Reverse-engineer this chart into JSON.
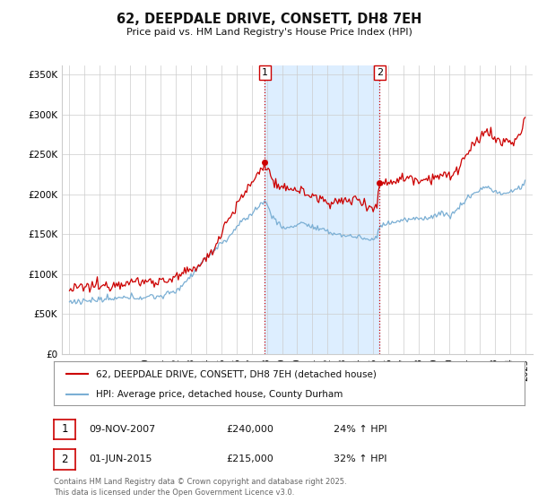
{
  "title": "62, DEEPDALE DRIVE, CONSETT, DH8 7EH",
  "subtitle": "Price paid vs. HM Land Registry's House Price Index (HPI)",
  "ylabel_ticks": [
    "£0",
    "£50K",
    "£100K",
    "£150K",
    "£200K",
    "£250K",
    "£300K",
    "£350K"
  ],
  "ytick_values": [
    0,
    50000,
    100000,
    150000,
    200000,
    250000,
    300000,
    350000
  ],
  "ylim": [
    0,
    362000
  ],
  "xlim_start": 1994.5,
  "xlim_end": 2025.5,
  "marker1_x": 2007.86,
  "marker1_y": 240000,
  "marker1_label": "1",
  "marker2_x": 2015.42,
  "marker2_y": 215000,
  "marker2_label": "2",
  "shade_start": 2007.86,
  "shade_end": 2015.42,
  "red_color": "#cc0000",
  "blue_color": "#7bafd4",
  "shade_color": "#ddeeff",
  "grid_color": "#cccccc",
  "background_color": "#ffffff",
  "legend_line1": "62, DEEPDALE DRIVE, CONSETT, DH8 7EH (detached house)",
  "legend_line2": "HPI: Average price, detached house, County Durham",
  "table_row1": [
    "1",
    "09-NOV-2007",
    "£240,000",
    "24% ↑ HPI"
  ],
  "table_row2": [
    "2",
    "01-JUN-2015",
    "£215,000",
    "32% ↑ HPI"
  ],
  "footnote": "Contains HM Land Registry data © Crown copyright and database right 2025.\nThis data is licensed under the Open Government Licence v3.0.",
  "hpi_red_data": [
    [
      1995.0,
      80000
    ],
    [
      1995.25,
      81000
    ],
    [
      1995.5,
      82000
    ],
    [
      1995.75,
      83500
    ],
    [
      1996.0,
      83000
    ],
    [
      1996.25,
      84000
    ],
    [
      1996.5,
      85000
    ],
    [
      1996.75,
      86000
    ],
    [
      1997.0,
      84000
    ],
    [
      1997.25,
      85000
    ],
    [
      1997.5,
      86000
    ],
    [
      1997.75,
      87500
    ],
    [
      1998.0,
      88000
    ],
    [
      1998.25,
      89000
    ],
    [
      1998.5,
      90000
    ],
    [
      1998.75,
      89500
    ],
    [
      1999.0,
      89000
    ],
    [
      1999.25,
      90000
    ],
    [
      1999.5,
      91000
    ],
    [
      1999.75,
      90500
    ],
    [
      2000.0,
      90000
    ],
    [
      2000.25,
      91000
    ],
    [
      2000.5,
      92000
    ],
    [
      2000.75,
      91500
    ],
    [
      2001.0,
      91000
    ],
    [
      2001.25,
      92000
    ],
    [
      2001.5,
      93000
    ],
    [
      2001.75,
      94000
    ],
    [
      2002.0,
      95000
    ],
    [
      2002.25,
      97000
    ],
    [
      2002.5,
      100000
    ],
    [
      2002.75,
      102000
    ],
    [
      2003.0,
      105000
    ],
    [
      2003.25,
      108000
    ],
    [
      2003.5,
      112000
    ],
    [
      2003.75,
      115000
    ],
    [
      2004.0,
      118000
    ],
    [
      2004.25,
      125000
    ],
    [
      2004.5,
      132000
    ],
    [
      2004.75,
      140000
    ],
    [
      2005.0,
      155000
    ],
    [
      2005.25,
      163000
    ],
    [
      2005.5,
      170000
    ],
    [
      2005.75,
      178000
    ],
    [
      2006.0,
      185000
    ],
    [
      2006.25,
      193000
    ],
    [
      2006.5,
      200000
    ],
    [
      2006.75,
      208000
    ],
    [
      2007.0,
      215000
    ],
    [
      2007.25,
      221000
    ],
    [
      2007.5,
      228000
    ],
    [
      2007.75,
      236000
    ],
    [
      2007.86,
      240000
    ],
    [
      2008.0,
      232000
    ],
    [
      2008.25,
      224000
    ],
    [
      2008.5,
      215000
    ],
    [
      2008.75,
      208000
    ],
    [
      2009.0,
      204000
    ],
    [
      2009.25,
      207000
    ],
    [
      2009.5,
      210000
    ],
    [
      2009.75,
      208000
    ],
    [
      2010.0,
      206000
    ],
    [
      2010.25,
      204000
    ],
    [
      2010.5,
      202000
    ],
    [
      2010.75,
      200000
    ],
    [
      2011.0,
      198000
    ],
    [
      2011.25,
      196000
    ],
    [
      2011.5,
      194000
    ],
    [
      2011.75,
      193000
    ],
    [
      2012.0,
      192000
    ],
    [
      2012.25,
      191000
    ],
    [
      2012.5,
      190000
    ],
    [
      2012.75,
      190000
    ],
    [
      2013.0,
      191000
    ],
    [
      2013.25,
      192000
    ],
    [
      2013.5,
      193000
    ],
    [
      2013.75,
      194000
    ],
    [
      2014.0,
      194000
    ],
    [
      2014.25,
      192000
    ],
    [
      2014.5,
      189000
    ],
    [
      2014.75,
      185000
    ],
    [
      2015.0,
      183000
    ],
    [
      2015.25,
      185000
    ],
    [
      2015.42,
      215000
    ],
    [
      2015.5,
      212000
    ],
    [
      2015.75,
      214000
    ],
    [
      2016.0,
      216000
    ],
    [
      2016.25,
      217000
    ],
    [
      2016.5,
      218000
    ],
    [
      2016.75,
      219000
    ],
    [
      2017.0,
      220000
    ],
    [
      2017.25,
      221000
    ],
    [
      2017.5,
      222000
    ],
    [
      2017.75,
      220000
    ],
    [
      2018.0,
      218000
    ],
    [
      2018.25,
      219000
    ],
    [
      2018.5,
      220000
    ],
    [
      2018.75,
      221000
    ],
    [
      2019.0,
      222000
    ],
    [
      2019.25,
      223000
    ],
    [
      2019.5,
      224000
    ],
    [
      2019.75,
      223000
    ],
    [
      2020.0,
      222000
    ],
    [
      2020.25,
      225000
    ],
    [
      2020.5,
      230000
    ],
    [
      2020.75,
      238000
    ],
    [
      2021.0,
      245000
    ],
    [
      2021.25,
      252000
    ],
    [
      2021.5,
      258000
    ],
    [
      2021.75,
      263000
    ],
    [
      2022.0,
      268000
    ],
    [
      2022.25,
      278000
    ],
    [
      2022.5,
      282000
    ],
    [
      2022.75,
      275000
    ],
    [
      2023.0,
      270000
    ],
    [
      2023.25,
      267000
    ],
    [
      2023.5,
      264000
    ],
    [
      2023.75,
      266000
    ],
    [
      2024.0,
      268000
    ],
    [
      2024.25,
      265000
    ],
    [
      2024.5,
      268000
    ],
    [
      2024.75,
      280000
    ],
    [
      2025.0,
      295000
    ]
  ],
  "hpi_blue_data": [
    [
      1995.0,
      65000
    ],
    [
      1995.25,
      65500
    ],
    [
      1995.5,
      66000
    ],
    [
      1995.75,
      66500
    ],
    [
      1996.0,
      66500
    ],
    [
      1996.25,
      67000
    ],
    [
      1996.5,
      67000
    ],
    [
      1996.75,
      67500
    ],
    [
      1997.0,
      67500
    ],
    [
      1997.25,
      68000
    ],
    [
      1997.5,
      68000
    ],
    [
      1997.75,
      68500
    ],
    [
      1998.0,
      69000
    ],
    [
      1998.25,
      69500
    ],
    [
      1998.5,
      70000
    ],
    [
      1998.75,
      70000
    ],
    [
      1999.0,
      70500
    ],
    [
      1999.25,
      71000
    ],
    [
      1999.5,
      71000
    ],
    [
      1999.75,
      71000
    ],
    [
      2000.0,
      71500
    ],
    [
      2000.25,
      72000
    ],
    [
      2000.5,
      72000
    ],
    [
      2000.75,
      72000
    ],
    [
      2001.0,
      72500
    ],
    [
      2001.25,
      73500
    ],
    [
      2001.5,
      75000
    ],
    [
      2001.75,
      77000
    ],
    [
      2002.0,
      79000
    ],
    [
      2002.25,
      83000
    ],
    [
      2002.5,
      88000
    ],
    [
      2002.75,
      93000
    ],
    [
      2003.0,
      98000
    ],
    [
      2003.25,
      104000
    ],
    [
      2003.5,
      110000
    ],
    [
      2003.75,
      116000
    ],
    [
      2004.0,
      120000
    ],
    [
      2004.25,
      125000
    ],
    [
      2004.5,
      130000
    ],
    [
      2004.75,
      135000
    ],
    [
      2005.0,
      138000
    ],
    [
      2005.25,
      142000
    ],
    [
      2005.5,
      147000
    ],
    [
      2005.75,
      153000
    ],
    [
      2006.0,
      158000
    ],
    [
      2006.25,
      163000
    ],
    [
      2006.5,
      168000
    ],
    [
      2006.75,
      172000
    ],
    [
      2007.0,
      176000
    ],
    [
      2007.25,
      181000
    ],
    [
      2007.5,
      186000
    ],
    [
      2007.75,
      190000
    ],
    [
      2007.86,
      192000
    ],
    [
      2008.0,
      187000
    ],
    [
      2008.25,
      178000
    ],
    [
      2008.5,
      169000
    ],
    [
      2008.75,
      163000
    ],
    [
      2009.0,
      159000
    ],
    [
      2009.25,
      158000
    ],
    [
      2009.5,
      158000
    ],
    [
      2009.75,
      160000
    ],
    [
      2010.0,
      163000
    ],
    [
      2010.25,
      165000
    ],
    [
      2010.5,
      163000
    ],
    [
      2010.75,
      161000
    ],
    [
      2011.0,
      159000
    ],
    [
      2011.25,
      157000
    ],
    [
      2011.5,
      156000
    ],
    [
      2011.75,
      154000
    ],
    [
      2012.0,
      153000
    ],
    [
      2012.25,
      152000
    ],
    [
      2012.5,
      151000
    ],
    [
      2012.75,
      150000
    ],
    [
      2013.0,
      149000
    ],
    [
      2013.25,
      148000
    ],
    [
      2013.5,
      148000
    ],
    [
      2013.75,
      147000
    ],
    [
      2014.0,
      147000
    ],
    [
      2014.25,
      146000
    ],
    [
      2014.5,
      144000
    ],
    [
      2014.75,
      143000
    ],
    [
      2015.0,
      144000
    ],
    [
      2015.25,
      147000
    ],
    [
      2015.42,
      158000
    ],
    [
      2015.5,
      162000
    ],
    [
      2015.75,
      163000
    ],
    [
      2016.0,
      164000
    ],
    [
      2016.25,
      165000
    ],
    [
      2016.5,
      166000
    ],
    [
      2016.75,
      167000
    ],
    [
      2017.0,
      167000
    ],
    [
      2017.25,
      168000
    ],
    [
      2017.5,
      169000
    ],
    [
      2017.75,
      169000
    ],
    [
      2018.0,
      169000
    ],
    [
      2018.25,
      170000
    ],
    [
      2018.5,
      171000
    ],
    [
      2018.75,
      172000
    ],
    [
      2019.0,
      173000
    ],
    [
      2019.25,
      175000
    ],
    [
      2019.5,
      176000
    ],
    [
      2019.75,
      175000
    ],
    [
      2020.0,
      174000
    ],
    [
      2020.25,
      176000
    ],
    [
      2020.5,
      180000
    ],
    [
      2020.75,
      186000
    ],
    [
      2021.0,
      191000
    ],
    [
      2021.25,
      196000
    ],
    [
      2021.5,
      200000
    ],
    [
      2021.75,
      203000
    ],
    [
      2022.0,
      205000
    ],
    [
      2022.25,
      208000
    ],
    [
      2022.5,
      210000
    ],
    [
      2022.75,
      207000
    ],
    [
      2023.0,
      204000
    ],
    [
      2023.25,
      202000
    ],
    [
      2023.5,
      200000
    ],
    [
      2023.75,
      201000
    ],
    [
      2024.0,
      203000
    ],
    [
      2024.25,
      205000
    ],
    [
      2024.5,
      207000
    ],
    [
      2024.75,
      210000
    ],
    [
      2025.0,
      214000
    ]
  ]
}
